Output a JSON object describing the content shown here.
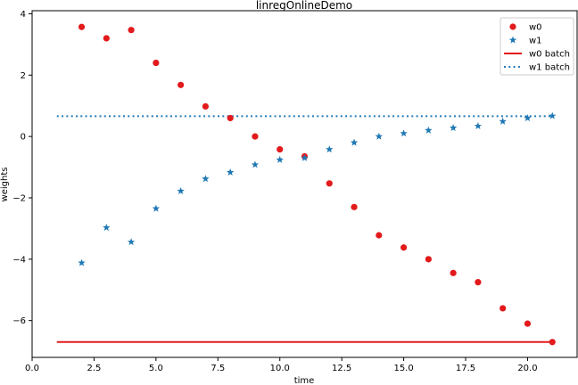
{
  "chart_data": {
    "type": "scatter",
    "title": "linregOnlineDemo",
    "xlabel": "time",
    "ylabel": "weights",
    "xlim": [
      0,
      22
    ],
    "ylim": [
      -7.2,
      4.1
    ],
    "xticks": [
      0,
      2.5,
      5,
      7.5,
      10,
      12.5,
      15,
      17.5,
      20
    ],
    "xtick_labels": [
      "0.0",
      "2.5",
      "5.0",
      "7.5",
      "10.0",
      "12.5",
      "15.0",
      "17.5",
      "20.0"
    ],
    "yticks": [
      -6,
      -4,
      -2,
      0,
      2,
      4
    ],
    "ytick_labels": [
      "−6",
      "−4",
      "−2",
      "0",
      "2",
      "4"
    ],
    "grid": false,
    "legend_position": "top-right",
    "series": [
      {
        "name": "w0",
        "kind": "scatter",
        "marker": "circle",
        "color": "#e31a1c",
        "x": [
          2,
          3,
          4,
          5,
          6,
          7,
          8,
          9,
          10,
          11,
          12,
          13,
          14,
          15,
          16,
          17,
          18,
          19,
          20,
          21
        ],
        "y": [
          3.57,
          3.2,
          3.47,
          2.4,
          1.68,
          0.98,
          0.6,
          0.0,
          -0.42,
          -0.65,
          -1.53,
          -2.3,
          -3.22,
          -3.62,
          -4.0,
          -4.45,
          -4.75,
          -5.6,
          -6.1,
          -6.7
        ]
      },
      {
        "name": "w1",
        "kind": "scatter",
        "marker": "star",
        "color": "#1f78b4",
        "x": [
          2,
          3,
          4,
          5,
          6,
          7,
          8,
          9,
          10,
          11,
          12,
          13,
          14,
          15,
          16,
          17,
          18,
          19,
          20,
          21
        ],
        "y": [
          -4.12,
          -2.97,
          -3.44,
          -2.35,
          -1.78,
          -1.38,
          -1.17,
          -0.92,
          -0.76,
          -0.7,
          -0.42,
          -0.2,
          0.0,
          0.1,
          0.2,
          0.28,
          0.34,
          0.49,
          0.6,
          0.67
        ]
      },
      {
        "name": "w0 batch",
        "kind": "line",
        "style": "solid",
        "color": "#e31a1c",
        "x": [
          1,
          21
        ],
        "y": [
          -6.7,
          -6.7
        ]
      },
      {
        "name": "w1 batch",
        "kind": "line",
        "style": "dotted",
        "color": "#1f78b4",
        "x": [
          1,
          21
        ],
        "y": [
          0.66,
          0.66
        ]
      }
    ]
  }
}
